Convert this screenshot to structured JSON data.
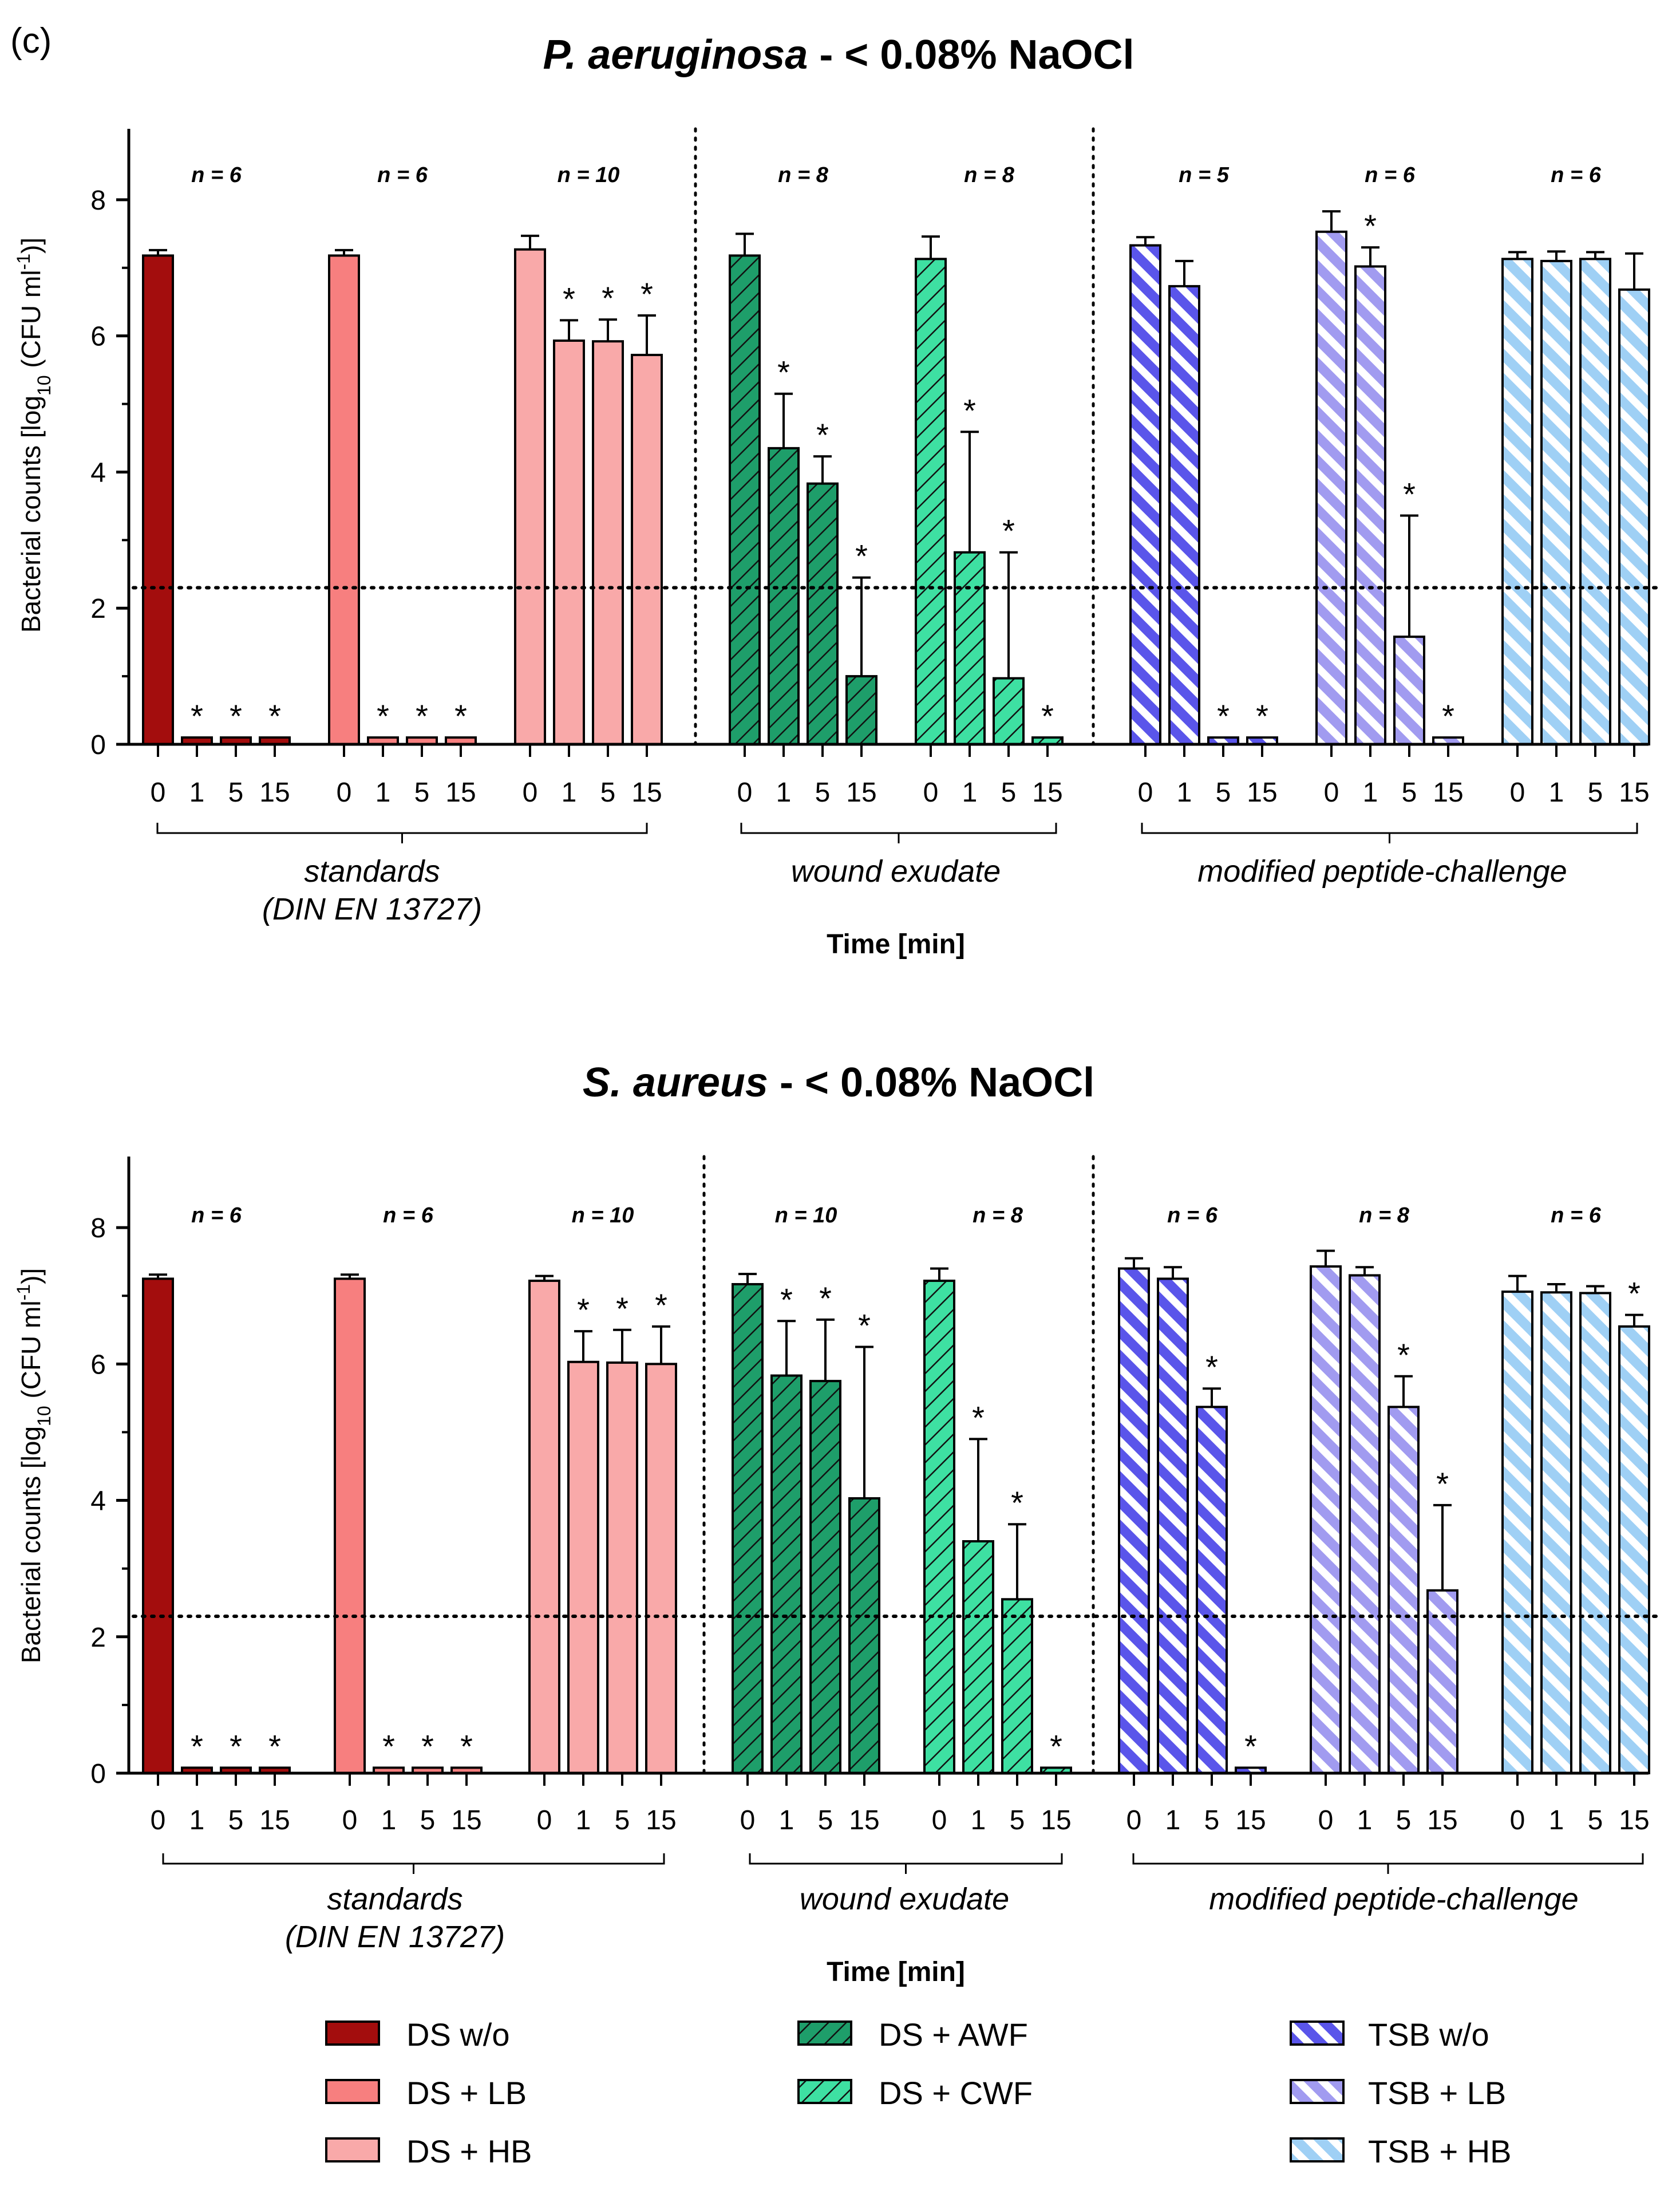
{
  "panel_label": "(c)",
  "x_axis_title": "Time [min]",
  "colors": {
    "DS w/o": "#a30d0d",
    "DS + LB": "#f77f7f",
    "DS + HB": "#f9a9a9",
    "DS + AWF": "#1e9e6a",
    "DS + CWF": "#3ee0a2",
    "TSB w/o": "#5a55ea",
    "TSB + LB": "#a19bf0",
    "TSB + HB": "#9fd0f5"
  },
  "legend": [
    {
      "name": "DS w/o",
      "pattern": "solid"
    },
    {
      "name": "DS + LB",
      "pattern": "solid"
    },
    {
      "name": "DS + HB",
      "pattern": "solid"
    },
    {
      "name": "DS + AWF",
      "pattern": "hatch"
    },
    {
      "name": "DS + CWF",
      "pattern": "hatch"
    },
    {
      "name": "TSB w/o",
      "pattern": "stripe"
    },
    {
      "name": "TSB + LB",
      "pattern": "stripe"
    },
    {
      "name": "TSB + HB",
      "pattern": "stripe"
    }
  ],
  "chart_data": [
    {
      "type": "bar",
      "title_species": "P. aeruginosa",
      "title_suffix": " - < 0.08% NaOCl",
      "ylabel_prefix": "Bacterial counts [log",
      "ylabel_sub": "10",
      "ylabel_mid": " (CFU ml",
      "ylabel_sup": "-1",
      "ylabel_suffix": ")]",
      "ylim": [
        0,
        9
      ],
      "yticks": [
        0,
        2,
        4,
        6,
        8
      ],
      "detection_limit": 2.3,
      "x_ticks": [
        "0",
        "1",
        "5",
        "15"
      ],
      "group_labels": [
        {
          "lines": [
            "standards",
            "(DIN EN 13727)"
          ]
        },
        {
          "lines": [
            "wound exudate"
          ]
        },
        {
          "lines": [
            "modified peptide-challenge"
          ]
        }
      ],
      "series": [
        {
          "name": "DS w/o",
          "n": "n = 6",
          "values": [
            7.18,
            0.1,
            0.1,
            0.1
          ],
          "errors": [
            0.08,
            0,
            0,
            0
          ],
          "sig": [
            false,
            true,
            true,
            true
          ]
        },
        {
          "name": "DS + LB",
          "n": "n = 6",
          "values": [
            7.18,
            0.1,
            0.1,
            0.1
          ],
          "errors": [
            0.08,
            0,
            0,
            0
          ],
          "sig": [
            false,
            true,
            true,
            true
          ]
        },
        {
          "name": "DS + HB",
          "n": "n = 10",
          "values": [
            7.27,
            5.93,
            5.92,
            5.72
          ],
          "errors": [
            0.2,
            0.3,
            0.32,
            0.58
          ],
          "sig": [
            false,
            true,
            true,
            true
          ]
        },
        {
          "name": "DS + AWF",
          "n": "n = 8",
          "values": [
            7.18,
            4.35,
            3.83,
            1.0
          ],
          "errors": [
            0.32,
            0.8,
            0.4,
            1.45
          ],
          "sig": [
            false,
            true,
            true,
            true
          ]
        },
        {
          "name": "DS + CWF",
          "n": "n = 8",
          "values": [
            7.13,
            2.82,
            0.97,
            0.1
          ],
          "errors": [
            0.33,
            1.77,
            1.85,
            0
          ],
          "sig": [
            false,
            true,
            true,
            true
          ]
        },
        {
          "name": "TSB w/o",
          "n": "n = 5",
          "values": [
            7.33,
            6.73,
            0.1,
            0.1
          ],
          "errors": [
            0.12,
            0.37,
            0,
            0
          ],
          "sig": [
            false,
            false,
            true,
            true
          ]
        },
        {
          "name": "TSB + LB",
          "n": "n = 6",
          "values": [
            7.53,
            7.02,
            1.58,
            0.1
          ],
          "errors": [
            0.3,
            0.28,
            1.78,
            0
          ],
          "sig": [
            false,
            true,
            true,
            true
          ]
        },
        {
          "name": "TSB + HB",
          "n": "n = 6",
          "values": [
            7.13,
            7.1,
            7.13,
            6.68
          ],
          "errors": [
            0.1,
            0.14,
            0.1,
            0.53
          ],
          "sig": [
            false,
            false,
            false,
            false
          ]
        }
      ]
    },
    {
      "type": "bar",
      "title_species": "S. aureus",
      "title_suffix": " - < 0.08% NaOCl",
      "ylabel_prefix": "Bacterial counts [log",
      "ylabel_sub": "10",
      "ylabel_mid": " (CFU ml",
      "ylabel_sup": "-1",
      "ylabel_suffix": ")]",
      "ylim": [
        0,
        9
      ],
      "yticks": [
        0,
        2,
        4,
        6,
        8
      ],
      "detection_limit": 2.3,
      "x_ticks": [
        "0",
        "1",
        "5",
        "15"
      ],
      "group_labels": [
        {
          "lines": [
            "standards",
            "(DIN EN 13727)"
          ]
        },
        {
          "lines": [
            "wound exudate"
          ]
        },
        {
          "lines": [
            "modified peptide-challenge"
          ]
        }
      ],
      "series": [
        {
          "name": "DS w/o",
          "n": "n = 6",
          "values": [
            7.25,
            0.08,
            0.08,
            0.08
          ],
          "errors": [
            0.06,
            0,
            0,
            0
          ],
          "sig": [
            false,
            true,
            true,
            true
          ]
        },
        {
          "name": "DS + LB",
          "n": "n = 6",
          "values": [
            7.25,
            0.08,
            0.08,
            0.08
          ],
          "errors": [
            0.06,
            0,
            0,
            0
          ],
          "sig": [
            false,
            true,
            true,
            true
          ]
        },
        {
          "name": "DS + HB",
          "n": "n = 10",
          "values": [
            7.22,
            6.03,
            6.02,
            6.0
          ],
          "errors": [
            0.07,
            0.45,
            0.48,
            0.55
          ],
          "sig": [
            false,
            true,
            true,
            true
          ]
        },
        {
          "name": "DS + AWF",
          "n": "n = 10",
          "values": [
            7.17,
            5.83,
            5.75,
            4.03
          ],
          "errors": [
            0.15,
            0.8,
            0.9,
            2.22
          ],
          "sig": [
            false,
            true,
            true,
            true
          ]
        },
        {
          "name": "DS + CWF",
          "n": "n = 8",
          "values": [
            7.22,
            3.4,
            2.55,
            0.08
          ],
          "errors": [
            0.18,
            1.5,
            1.1,
            0
          ],
          "sig": [
            false,
            true,
            true,
            true
          ]
        },
        {
          "name": "TSB w/o",
          "n": "n = 6",
          "values": [
            7.4,
            7.25,
            5.37,
            0.08
          ],
          "errors": [
            0.15,
            0.17,
            0.27,
            0
          ],
          "sig": [
            false,
            false,
            true,
            true
          ]
        },
        {
          "name": "TSB + LB",
          "n": "n = 8",
          "values": [
            7.43,
            7.3,
            5.37,
            2.68
          ],
          "errors": [
            0.23,
            0.12,
            0.45,
            1.25
          ],
          "sig": [
            false,
            false,
            true,
            true
          ]
        },
        {
          "name": "TSB + HB",
          "n": "n = 6",
          "values": [
            7.06,
            7.05,
            7.04,
            6.55
          ],
          "errors": [
            0.23,
            0.12,
            0.1,
            0.17
          ],
          "sig": [
            false,
            false,
            false,
            true
          ]
        }
      ]
    }
  ]
}
